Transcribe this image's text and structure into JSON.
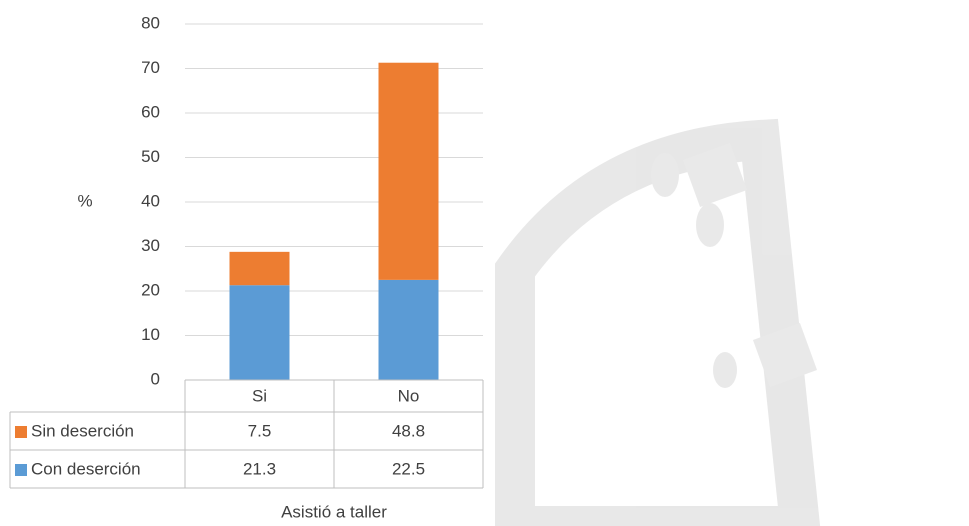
{
  "chart_data": {
    "type": "bar",
    "stacked": true,
    "y_label": "%",
    "x_label": "Asistió a taller",
    "categories": [
      "Si",
      "No"
    ],
    "series": [
      {
        "name": "Con deserción",
        "color": "#5b9bd5",
        "values": [
          21.3,
          22.5
        ]
      },
      {
        "name": "Sin deserción",
        "color": "#ed7d31",
        "values": [
          7.5,
          48.8
        ]
      }
    ],
    "ylim": [
      0,
      80
    ],
    "yticks": [
      0,
      10,
      20,
      30,
      40,
      50,
      60,
      70,
      80
    ],
    "grid": true
  }
}
